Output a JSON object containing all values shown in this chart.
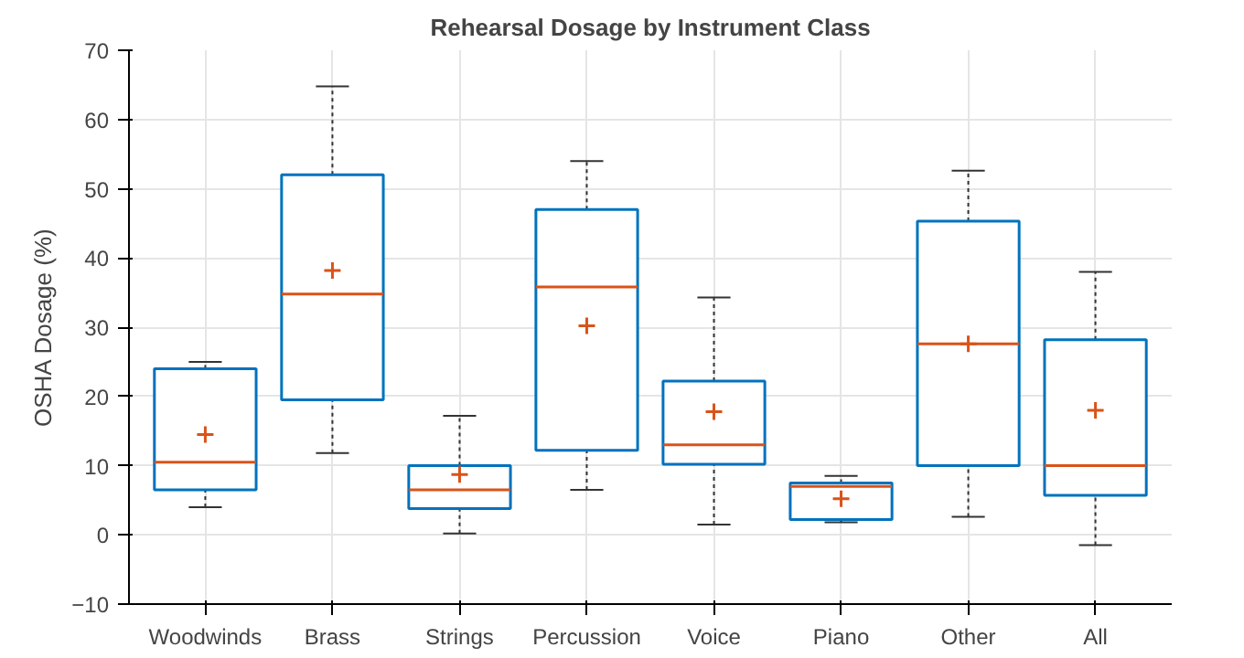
{
  "chart_data": {
    "type": "box",
    "title": "Rehearsal Dosage by Instrument Class",
    "ylabel": "OSHA Dosage (%)",
    "categories": [
      "Woodwinds",
      "Brass",
      "Strings",
      "Percussion",
      "Voice",
      "Piano",
      "Other",
      "All"
    ],
    "boxes": [
      {
        "low": 4,
        "q1": 6.5,
        "median": 10.5,
        "q3": 24,
        "high": 25,
        "mean": 14.5
      },
      {
        "low": 11.8,
        "q1": 19.5,
        "median": 34.8,
        "q3": 52,
        "high": 64.8,
        "mean": 38.2
      },
      {
        "low": 0.2,
        "q1": 3.8,
        "median": 6.5,
        "q3": 10,
        "high": 17.2,
        "mean": 8.7
      },
      {
        "low": 6.5,
        "q1": 12.2,
        "median": 35.8,
        "q3": 47,
        "high": 54,
        "mean": 30.2
      },
      {
        "low": 1.5,
        "q1": 10.2,
        "median": 13,
        "q3": 22.2,
        "high": 34.3,
        "mean": 17.8
      },
      {
        "low": 1.8,
        "q1": 2.2,
        "median": 7,
        "q3": 7.5,
        "high": 8.5,
        "mean": 5.2
      },
      {
        "low": 2.6,
        "q1": 10,
        "median": 27.6,
        "q3": 45.3,
        "high": 52.6,
        "mean": 27.6
      },
      {
        "low": -1.5,
        "q1": 5.7,
        "median": 10,
        "q3": 28.2,
        "high": 38,
        "mean": 18
      }
    ],
    "color": "#0072bd",
    "ylim": [
      -10,
      70
    ],
    "yticks": [
      -10,
      0,
      10,
      20,
      30,
      40,
      50,
      60,
      70
    ],
    "grid": true
  }
}
